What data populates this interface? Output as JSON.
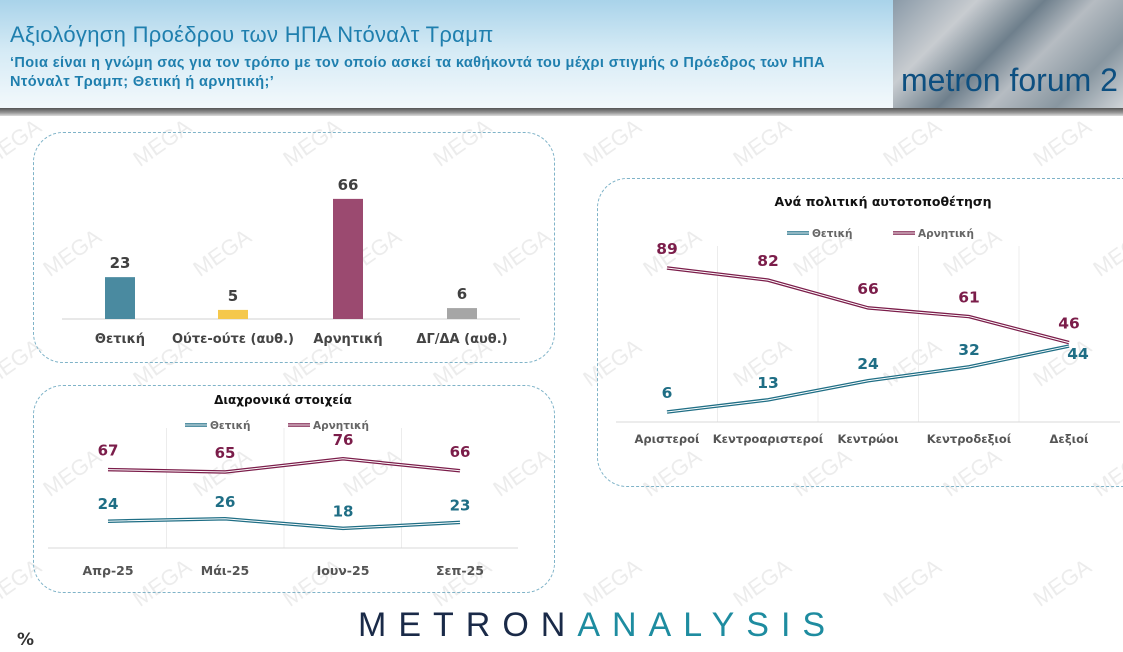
{
  "header": {
    "title": "Αξιολόγηση Προέδρου των ΗΠΑ Ντόναλτ Τραμπ",
    "subtitle": "‘Ποια είναι η γνώμη σας για τον τρόπο με τον οποίο ασκεί τα καθήκοντά του μέχρι στιγμής ο Πρόεδρος των ΗΠΑ Ντόναλτ Τραμπ; Θετική ή αρνητική;’",
    "brand_image_text": "metron forum 2"
  },
  "footer": {
    "logo_part1": "METRON",
    "logo_part2": "ANALYSIS",
    "unit": "%"
  },
  "watermark": "MEGA",
  "colors": {
    "positive": "#1f6e85",
    "negative": "#7b1d4a",
    "bar_positive": "#4a8aa0",
    "bar_neutral": "#f5c84c",
    "bar_negative": "#9b4a70",
    "bar_dk": "#a6a6a6"
  },
  "chart_data": [
    {
      "type": "bar",
      "title": "",
      "categories": [
        "Θετική",
        "Ούτε-ούτε (αυθ.)",
        "Αρνητική",
        "ΔΓ/ΔΑ (αυθ.)"
      ],
      "values": [
        23,
        5,
        66,
        6
      ],
      "ylim": [
        0,
        70
      ]
    },
    {
      "type": "line",
      "title": "Διαχρονικά στοιχεία",
      "categories": [
        "Απρ-25",
        "Μάι-25",
        "Ιουν-25",
        "Σεπ-25"
      ],
      "legend": "top",
      "series": [
        {
          "name": "Θετική",
          "values": [
            24,
            26,
            18,
            23
          ]
        },
        {
          "name": "Αρνητική",
          "values": [
            67,
            65,
            76,
            66
          ]
        }
      ]
    },
    {
      "type": "line",
      "title": "Ανά πολιτική αυτοτοποθέτηση",
      "categories": [
        "Αριστεροί",
        "Κεντροαριστεροί",
        "Κεντρώοι",
        "Κεντροδεξιοί",
        "Δεξιοί"
      ],
      "legend": "top",
      "series": [
        {
          "name": "Θετική",
          "values": [
            6,
            13,
            24,
            32,
            44
          ]
        },
        {
          "name": "Αρνητική",
          "values": [
            89,
            82,
            66,
            61,
            46
          ]
        }
      ]
    }
  ]
}
